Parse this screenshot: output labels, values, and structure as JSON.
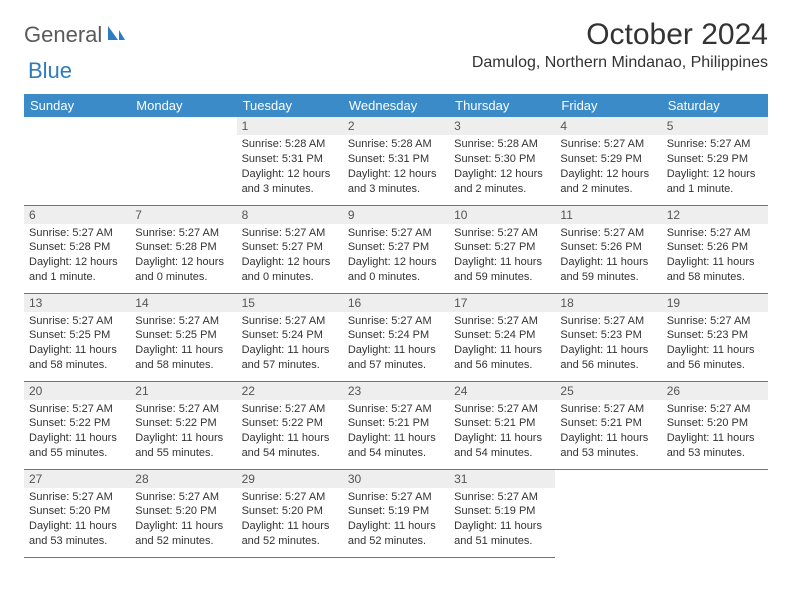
{
  "logo": {
    "general": "General",
    "blue": "Blue"
  },
  "title": "October 2024",
  "location": "Damulog, Northern Mindanao, Philippines",
  "colors": {
    "header_bg": "#3b8bc8",
    "header_fg": "#ffffff",
    "daynum_bg": "#eeeeee",
    "border": "#5a7a9a",
    "logo_gray": "#5a5a5a",
    "logo_blue": "#2d7bc0"
  },
  "weekdays": [
    "Sunday",
    "Monday",
    "Tuesday",
    "Wednesday",
    "Thursday",
    "Friday",
    "Saturday"
  ],
  "weeks": [
    [
      null,
      null,
      {
        "n": "1",
        "sr": "5:28 AM",
        "ss": "5:31 PM",
        "dl": "12 hours and 3 minutes."
      },
      {
        "n": "2",
        "sr": "5:28 AM",
        "ss": "5:31 PM",
        "dl": "12 hours and 3 minutes."
      },
      {
        "n": "3",
        "sr": "5:28 AM",
        "ss": "5:30 PM",
        "dl": "12 hours and 2 minutes."
      },
      {
        "n": "4",
        "sr": "5:27 AM",
        "ss": "5:29 PM",
        "dl": "12 hours and 2 minutes."
      },
      {
        "n": "5",
        "sr": "5:27 AM",
        "ss": "5:29 PM",
        "dl": "12 hours and 1 minute."
      }
    ],
    [
      {
        "n": "6",
        "sr": "5:27 AM",
        "ss": "5:28 PM",
        "dl": "12 hours and 1 minute."
      },
      {
        "n": "7",
        "sr": "5:27 AM",
        "ss": "5:28 PM",
        "dl": "12 hours and 0 minutes."
      },
      {
        "n": "8",
        "sr": "5:27 AM",
        "ss": "5:27 PM",
        "dl": "12 hours and 0 minutes."
      },
      {
        "n": "9",
        "sr": "5:27 AM",
        "ss": "5:27 PM",
        "dl": "12 hours and 0 minutes."
      },
      {
        "n": "10",
        "sr": "5:27 AM",
        "ss": "5:27 PM",
        "dl": "11 hours and 59 minutes."
      },
      {
        "n": "11",
        "sr": "5:27 AM",
        "ss": "5:26 PM",
        "dl": "11 hours and 59 minutes."
      },
      {
        "n": "12",
        "sr": "5:27 AM",
        "ss": "5:26 PM",
        "dl": "11 hours and 58 minutes."
      }
    ],
    [
      {
        "n": "13",
        "sr": "5:27 AM",
        "ss": "5:25 PM",
        "dl": "11 hours and 58 minutes."
      },
      {
        "n": "14",
        "sr": "5:27 AM",
        "ss": "5:25 PM",
        "dl": "11 hours and 58 minutes."
      },
      {
        "n": "15",
        "sr": "5:27 AM",
        "ss": "5:24 PM",
        "dl": "11 hours and 57 minutes."
      },
      {
        "n": "16",
        "sr": "5:27 AM",
        "ss": "5:24 PM",
        "dl": "11 hours and 57 minutes."
      },
      {
        "n": "17",
        "sr": "5:27 AM",
        "ss": "5:24 PM",
        "dl": "11 hours and 56 minutes."
      },
      {
        "n": "18",
        "sr": "5:27 AM",
        "ss": "5:23 PM",
        "dl": "11 hours and 56 minutes."
      },
      {
        "n": "19",
        "sr": "5:27 AM",
        "ss": "5:23 PM",
        "dl": "11 hours and 56 minutes."
      }
    ],
    [
      {
        "n": "20",
        "sr": "5:27 AM",
        "ss": "5:22 PM",
        "dl": "11 hours and 55 minutes."
      },
      {
        "n": "21",
        "sr": "5:27 AM",
        "ss": "5:22 PM",
        "dl": "11 hours and 55 minutes."
      },
      {
        "n": "22",
        "sr": "5:27 AM",
        "ss": "5:22 PM",
        "dl": "11 hours and 54 minutes."
      },
      {
        "n": "23",
        "sr": "5:27 AM",
        "ss": "5:21 PM",
        "dl": "11 hours and 54 minutes."
      },
      {
        "n": "24",
        "sr": "5:27 AM",
        "ss": "5:21 PM",
        "dl": "11 hours and 54 minutes."
      },
      {
        "n": "25",
        "sr": "5:27 AM",
        "ss": "5:21 PM",
        "dl": "11 hours and 53 minutes."
      },
      {
        "n": "26",
        "sr": "5:27 AM",
        "ss": "5:20 PM",
        "dl": "11 hours and 53 minutes."
      }
    ],
    [
      {
        "n": "27",
        "sr": "5:27 AM",
        "ss": "5:20 PM",
        "dl": "11 hours and 53 minutes."
      },
      {
        "n": "28",
        "sr": "5:27 AM",
        "ss": "5:20 PM",
        "dl": "11 hours and 52 minutes."
      },
      {
        "n": "29",
        "sr": "5:27 AM",
        "ss": "5:20 PM",
        "dl": "11 hours and 52 minutes."
      },
      {
        "n": "30",
        "sr": "5:27 AM",
        "ss": "5:19 PM",
        "dl": "11 hours and 52 minutes."
      },
      {
        "n": "31",
        "sr": "5:27 AM",
        "ss": "5:19 PM",
        "dl": "11 hours and 51 minutes."
      },
      null,
      null
    ]
  ],
  "labels": {
    "sunrise": "Sunrise:",
    "sunset": "Sunset:",
    "daylight": "Daylight:"
  }
}
